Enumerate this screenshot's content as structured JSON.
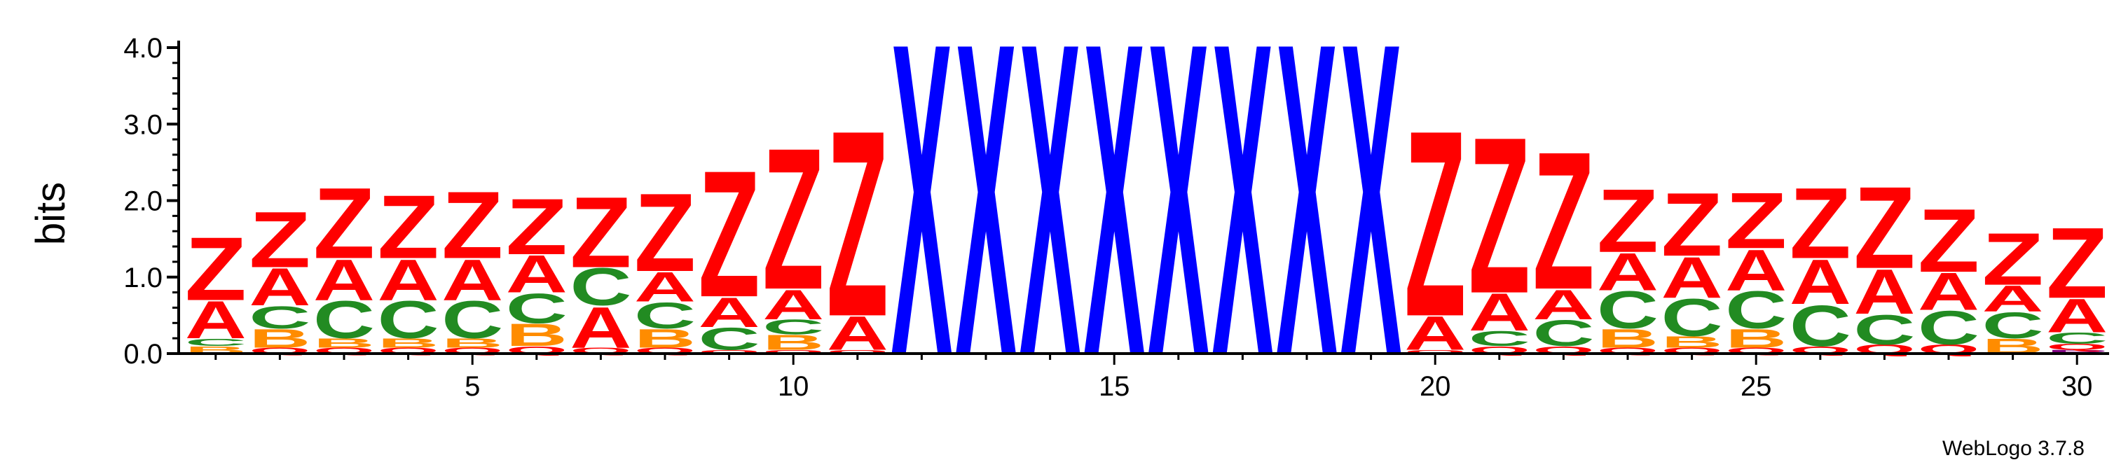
{
  "chart_data": {
    "type": "sequence-logo",
    "ylabel": "bits",
    "ylim": [
      0,
      4.0
    ],
    "yticks": [
      "0.0",
      "1.0",
      "2.0",
      "3.0",
      "4.0"
    ],
    "xticks": [
      5,
      10,
      15,
      20,
      25,
      30
    ],
    "npositions": 30,
    "credit": "WebLogo 3.7.8",
    "colors": {
      "Z": "#ff0000",
      "A": "#ff0000",
      "C": "#228b22",
      "B": "#ff8c00",
      "Q": "#ff0000",
      "X": "#0000ff",
      "P": "#800080"
    },
    "positions": [
      {
        "pos": 1,
        "stack": [
          [
            "B",
            0.1
          ],
          [
            "C",
            0.1
          ],
          [
            "A",
            0.5
          ],
          [
            "Z",
            0.85
          ]
        ]
      },
      {
        "pos": 2,
        "stack": [
          [
            "Q",
            0.08
          ],
          [
            "B",
            0.25
          ],
          [
            "C",
            0.3
          ],
          [
            "A",
            0.5
          ],
          [
            "Z",
            0.75
          ]
        ]
      },
      {
        "pos": 3,
        "stack": [
          [
            "Q",
            0.08
          ],
          [
            "B",
            0.12
          ],
          [
            "C",
            0.5
          ],
          [
            "A",
            0.55
          ],
          [
            "Z",
            0.95
          ]
        ]
      },
      {
        "pos": 4,
        "stack": [
          [
            "Q",
            0.08
          ],
          [
            "B",
            0.12
          ],
          [
            "C",
            0.5
          ],
          [
            "A",
            0.55
          ],
          [
            "Z",
            0.85
          ]
        ]
      },
      {
        "pos": 5,
        "stack": [
          [
            "Q",
            0.08
          ],
          [
            "B",
            0.12
          ],
          [
            "C",
            0.5
          ],
          [
            "A",
            0.55
          ],
          [
            "Z",
            0.9
          ]
        ]
      },
      {
        "pos": 6,
        "stack": [
          [
            "Q",
            0.1
          ],
          [
            "B",
            0.3
          ],
          [
            "C",
            0.4
          ],
          [
            "A",
            0.5
          ],
          [
            "Z",
            0.75
          ]
        ]
      },
      {
        "pos": 7,
        "stack": [
          [
            "Q",
            0.08
          ],
          [
            "A",
            0.55
          ],
          [
            "C",
            0.5
          ],
          [
            "Z",
            0.95
          ]
        ]
      },
      {
        "pos": 8,
        "stack": [
          [
            "Q",
            0.08
          ],
          [
            "B",
            0.25
          ],
          [
            "C",
            0.35
          ],
          [
            "A",
            0.4
          ],
          [
            "Z",
            1.05
          ]
        ]
      },
      {
        "pos": 9,
        "stack": [
          [
            "Q",
            0.05
          ],
          [
            "C",
            0.3
          ],
          [
            "A",
            0.4
          ],
          [
            "Z",
            1.7
          ]
        ]
      },
      {
        "pos": 10,
        "stack": [
          [
            "Q",
            0.05
          ],
          [
            "B",
            0.2
          ],
          [
            "C",
            0.2
          ],
          [
            "A",
            0.4
          ],
          [
            "Z",
            1.9
          ]
        ]
      },
      {
        "pos": 11,
        "stack": [
          [
            "Q",
            0.05
          ],
          [
            "A",
            0.45
          ],
          [
            "Z",
            2.5
          ]
        ]
      },
      {
        "pos": 12,
        "stack": [
          [
            "X",
            4.2
          ]
        ]
      },
      {
        "pos": 13,
        "stack": [
          [
            "X",
            4.2
          ]
        ]
      },
      {
        "pos": 14,
        "stack": [
          [
            "X",
            4.2
          ]
        ]
      },
      {
        "pos": 15,
        "stack": [
          [
            "X",
            4.2
          ]
        ]
      },
      {
        "pos": 16,
        "stack": [
          [
            "X",
            4.2
          ]
        ]
      },
      {
        "pos": 17,
        "stack": [
          [
            "X",
            4.2
          ]
        ]
      },
      {
        "pos": 18,
        "stack": [
          [
            "X",
            4.2
          ]
        ]
      },
      {
        "pos": 19,
        "stack": [
          [
            "X",
            4.2
          ]
        ]
      },
      {
        "pos": 20,
        "stack": [
          [
            "Q",
            0.05
          ],
          [
            "A",
            0.45
          ],
          [
            "Z",
            2.5
          ]
        ]
      },
      {
        "pos": 21,
        "stack": [
          [
            "Q",
            0.1
          ],
          [
            "C",
            0.2
          ],
          [
            "A",
            0.5
          ],
          [
            "Z",
            2.1
          ]
        ]
      },
      {
        "pos": 22,
        "stack": [
          [
            "Q",
            0.1
          ],
          [
            "C",
            0.35
          ],
          [
            "A",
            0.4
          ],
          [
            "Z",
            1.85
          ]
        ]
      },
      {
        "pos": 23,
        "stack": [
          [
            "Q",
            0.08
          ],
          [
            "B",
            0.25
          ],
          [
            "C",
            0.5
          ],
          [
            "A",
            0.5
          ],
          [
            "Z",
            0.85
          ]
        ]
      },
      {
        "pos": 24,
        "stack": [
          [
            "Q",
            0.08
          ],
          [
            "B",
            0.15
          ],
          [
            "C",
            0.5
          ],
          [
            "A",
            0.55
          ],
          [
            "Z",
            0.85
          ]
        ]
      },
      {
        "pos": 25,
        "stack": [
          [
            "Q",
            0.08
          ],
          [
            "B",
            0.25
          ],
          [
            "C",
            0.5
          ],
          [
            "A",
            0.55
          ],
          [
            "Z",
            0.75
          ]
        ]
      },
      {
        "pos": 26,
        "stack": [
          [
            "Q",
            0.1
          ],
          [
            "C",
            0.55
          ],
          [
            "A",
            0.6
          ],
          [
            "Z",
            0.95
          ]
        ]
      },
      {
        "pos": 27,
        "stack": [
          [
            "Q",
            0.12
          ],
          [
            "C",
            0.4
          ],
          [
            "A",
            0.6
          ],
          [
            "Z",
            1.1
          ]
        ]
      },
      {
        "pos": 28,
        "stack": [
          [
            "Q",
            0.12
          ],
          [
            "C",
            0.45
          ],
          [
            "A",
            0.5
          ],
          [
            "Z",
            0.85
          ]
        ]
      },
      {
        "pos": 29,
        "stack": [
          [
            "B",
            0.2
          ],
          [
            "C",
            0.35
          ],
          [
            "A",
            0.35
          ],
          [
            "Z",
            0.7
          ]
        ]
      },
      {
        "pos": 30,
        "stack": [
          [
            "P",
            0.05
          ],
          [
            "Q",
            0.08
          ],
          [
            "C",
            0.15
          ],
          [
            "A",
            0.45
          ],
          [
            "Z",
            0.95
          ]
        ]
      }
    ]
  }
}
